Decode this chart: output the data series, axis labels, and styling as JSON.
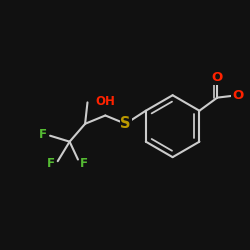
{
  "background_color": "#111111",
  "bond_color": "#cccccc",
  "bond_width": 1.5,
  "atom_colors": {
    "O": "#ff2200",
    "S": "#bb9900",
    "F": "#55bb33",
    "C": "#cccccc"
  },
  "font_size": 8.5,
  "figsize": [
    2.5,
    2.5
  ],
  "dpi": 100
}
